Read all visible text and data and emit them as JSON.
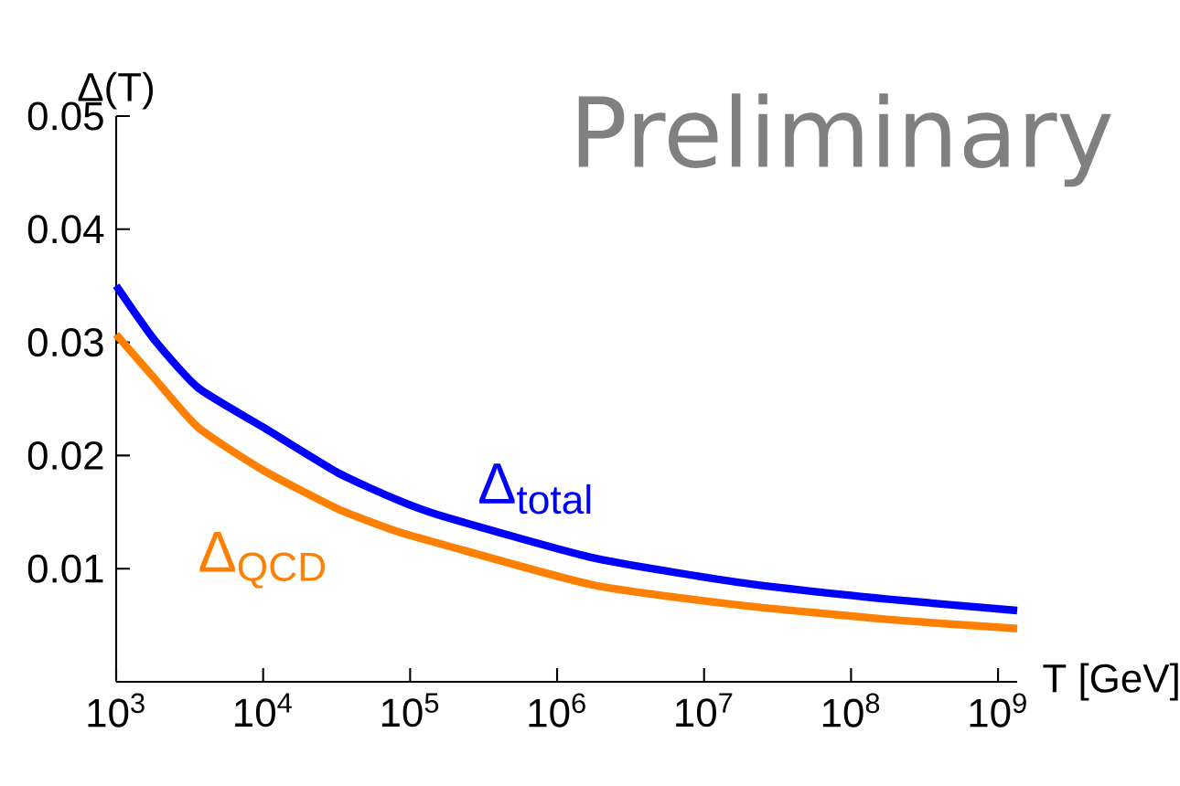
{
  "chart_data": {
    "type": "line",
    "xlabel": "T [GeV]",
    "ylabel": "Δ(T)",
    "annotations": [
      "Preliminary"
    ],
    "x": [
      1000,
      1800,
      3600,
      10000,
      32000,
      81000,
      160000,
      1700000,
      17000000,
      180000000,
      1350000000
    ],
    "series": [
      {
        "name": "Δ$_{total}$",
        "color": "#0000ff",
        "values": [
          0.035,
          0.0303,
          0.026,
          0.0225,
          0.0185,
          0.0161,
          0.0147,
          0.011,
          0.0088,
          0.0073,
          0.0063
        ]
      },
      {
        "name": "Δ$_{QCD}$",
        "color": "#ff7f00",
        "values": [
          0.0307,
          0.0269,
          0.0225,
          0.0187,
          0.0153,
          0.0133,
          0.0122,
          0.0086,
          0.0068,
          0.0055,
          0.0047
        ]
      }
    ],
    "log": "x",
    "xlim": [
      1000,
      1350000000
    ],
    "ylim": [
      0,
      0.05
    ],
    "xticks": [
      {
        "value": 1000,
        "label": "10$^{3}$"
      },
      {
        "value": 10000,
        "label": "10$^{4}$"
      },
      {
        "value": 100000,
        "label": "10$^{5}$"
      },
      {
        "value": 1000000,
        "label": "10$^{6}$"
      },
      {
        "value": 10000000,
        "label": "10$^{7}$"
      },
      {
        "value": 100000000,
        "label": "10$^{8}$"
      },
      {
        "value": 1000000000,
        "label": "10$^{9}$"
      }
    ],
    "yticks": [
      0.01,
      0.02,
      0.03,
      0.04,
      0.05
    ],
    "grid": false,
    "legend": false,
    "marker": "none",
    "line_style": "solid"
  }
}
